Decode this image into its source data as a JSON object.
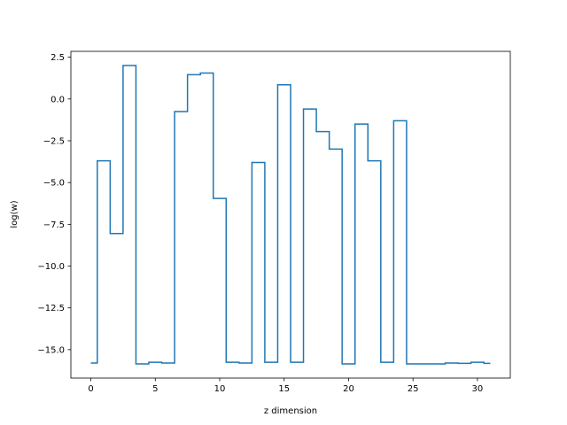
{
  "chart_data": {
    "type": "line",
    "drawstyle": "steps-mid",
    "title": "",
    "xlabel": "z dimension",
    "ylabel": "log(w)",
    "xlim": [
      -1.55,
      32.55
    ],
    "ylim": [
      -16.7,
      2.85
    ],
    "xticks": [
      0,
      5,
      10,
      15,
      20,
      25,
      30
    ],
    "xtick_labels": [
      "0",
      "5",
      "10",
      "15",
      "20",
      "25",
      "30"
    ],
    "yticks": [
      2.5,
      0.0,
      -2.5,
      -5.0,
      -7.5,
      -10.0,
      -12.5,
      -15.0
    ],
    "ytick_labels": [
      "2.5",
      "0.0",
      "−2.5",
      "−5.0",
      "−7.5",
      "−10.0",
      "−12.5",
      "−15.0"
    ],
    "grid": false,
    "series": [
      {
        "color": "#1f77b4",
        "x": [
          0,
          1,
          2,
          3,
          4,
          5,
          6,
          7,
          8,
          9,
          10,
          11,
          12,
          13,
          14,
          15,
          16,
          17,
          18,
          19,
          20,
          21,
          22,
          23,
          24,
          25,
          26,
          27,
          28,
          29,
          30,
          31
        ],
        "values": [
          -15.8,
          -3.7,
          -8.05,
          2.0,
          -15.85,
          -15.75,
          -15.8,
          -0.75,
          1.45,
          1.55,
          -5.95,
          -15.75,
          -15.8,
          -3.8,
          -15.75,
          0.85,
          -15.75,
          -0.6,
          -1.95,
          -3.0,
          -15.85,
          -1.5,
          -3.7,
          -15.75,
          -1.3,
          -15.85,
          -15.85,
          -15.85,
          -15.8,
          -15.82,
          -15.75,
          -15.82
        ]
      }
    ]
  }
}
